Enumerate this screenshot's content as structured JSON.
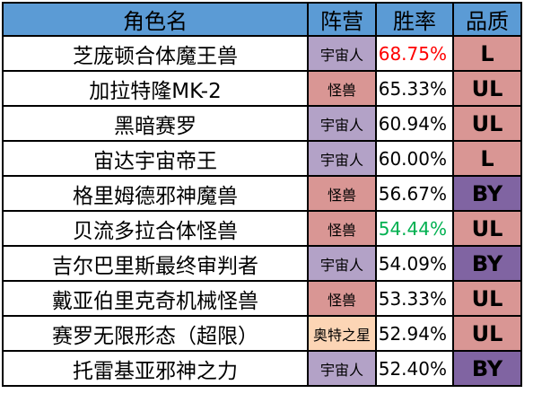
{
  "headers": {
    "name": "角色名",
    "faction": "阵营",
    "rate": "胜率",
    "tier": "品质"
  },
  "colors": {
    "header_bg": "#5b9bd5",
    "faction_宇宙人": "#b3a2c7",
    "faction_怪兽": "#d99694",
    "faction_奥特之星": "#fcd5b5",
    "tier_L": "#d99694",
    "tier_UL": "#d99694",
    "tier_BY": "#8064a2",
    "rate_red": "#ff0000",
    "rate_green": "#00b050",
    "rate_default": "#000000"
  },
  "rows": [
    {
      "name": "芝庞顿合体魔王兽",
      "faction": "宇宙人",
      "rate": "68.75%",
      "tier": "L",
      "rate_color": "#ff0000"
    },
    {
      "name": "加拉特隆MK-2",
      "faction": "怪兽",
      "rate": "65.33%",
      "tier": "UL",
      "rate_color": "#000000"
    },
    {
      "name": "黑暗赛罗",
      "faction": "宇宙人",
      "rate": "60.94%",
      "tier": "UL",
      "rate_color": "#000000"
    },
    {
      "name": "宙达宇宙帝王",
      "faction": "宇宙人",
      "rate": "60.00%",
      "tier": "L",
      "rate_color": "#000000"
    },
    {
      "name": "格里姆德邪神魔兽",
      "faction": "怪兽",
      "rate": "56.67%",
      "tier": "BY",
      "rate_color": "#000000"
    },
    {
      "name": "贝流多拉合体怪兽",
      "faction": "怪兽",
      "rate": "54.44%",
      "tier": "UL",
      "rate_color": "#00b050"
    },
    {
      "name": "吉尔巴里斯最终审判者",
      "faction": "宇宙人",
      "rate": "54.09%",
      "tier": "BY",
      "rate_color": "#000000"
    },
    {
      "name": "戴亚伯里克奇机械怪兽",
      "faction": "怪兽",
      "rate": "53.33%",
      "tier": "UL",
      "rate_color": "#000000"
    },
    {
      "name": "赛罗无限形态（超限）",
      "faction": "奥特之星",
      "rate": "52.94%",
      "tier": "UL",
      "rate_color": "#000000"
    },
    {
      "name": "托雷基亚邪神之力",
      "faction": "宇宙人",
      "rate": "52.40%",
      "tier": "BY",
      "rate_color": "#000000"
    }
  ]
}
